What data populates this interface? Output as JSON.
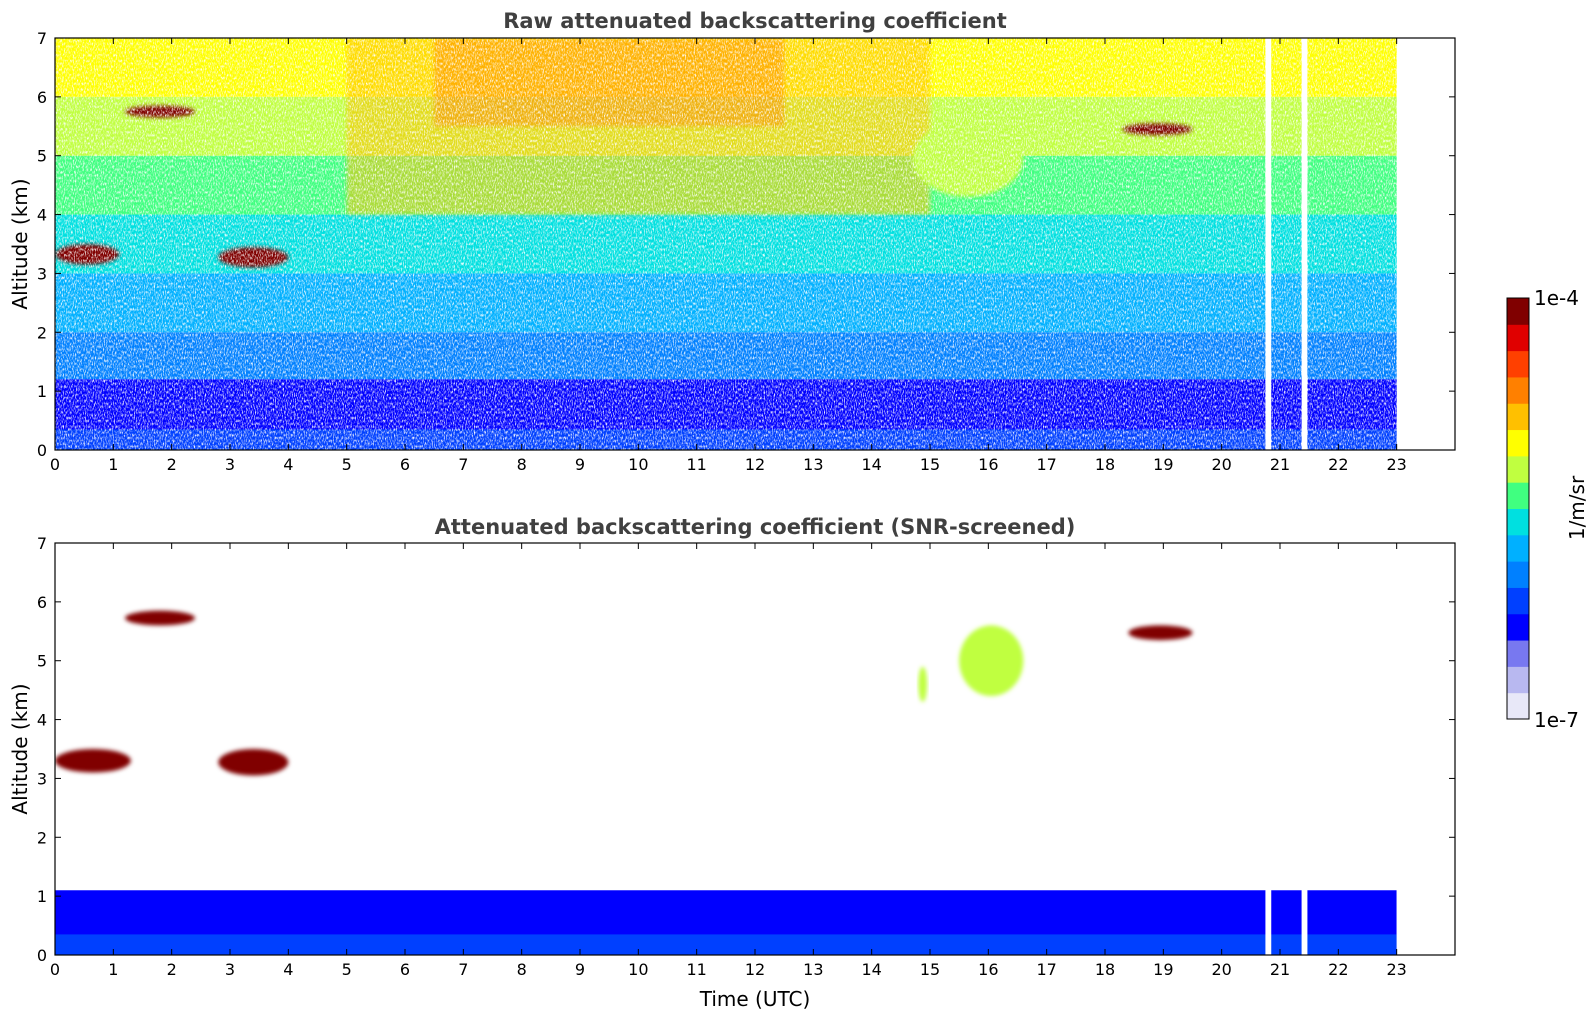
{
  "figure": {
    "colorbar": {
      "label": "1/m/sr",
      "min_label": "1e-7",
      "max_label": "1e-4",
      "colormap": [
        "#e8e8f8",
        "#b8b8f0",
        "#7878f0",
        "#0000ff",
        "#0040ff",
        "#0080ff",
        "#00b0ff",
        "#00e0e0",
        "#40ff80",
        "#c0ff40",
        "#ffff00",
        "#ffc000",
        "#ff8000",
        "#ff4000",
        "#e00000",
        "#800000"
      ]
    },
    "xlabel": "Time (UTC)"
  },
  "chart_data": [
    {
      "type": "heatmap",
      "title": "Raw attenuated backscattering coefficient",
      "xlabel": "",
      "ylabel": "Altitude (km)",
      "xlim": [
        0,
        24
      ],
      "ylim": [
        0,
        7
      ],
      "x_ticks": [
        0,
        1,
        2,
        3,
        4,
        5,
        6,
        7,
        8,
        9,
        10,
        11,
        12,
        13,
        14,
        15,
        16,
        17,
        18,
        19,
        20,
        21,
        22,
        23
      ],
      "y_ticks": [
        0,
        1,
        2,
        3,
        4,
        5,
        6,
        7
      ],
      "data_extent_hours": [
        0,
        23
      ],
      "data_gaps_hours": [
        [
          20.75,
          20.85
        ],
        [
          21.37,
          21.47
        ]
      ],
      "features": [
        {
          "name": "boundary layer",
          "t": [
            0,
            23
          ],
          "z": [
            0,
            1.2
          ],
          "level": "low-mid"
        },
        {
          "name": "cloud",
          "t": [
            1.2,
            2.4
          ],
          "z": [
            5.65,
            5.85
          ],
          "level": "max"
        },
        {
          "name": "cloud",
          "t": [
            0,
            1.1
          ],
          "z": [
            3.15,
            3.5
          ],
          "level": "max"
        },
        {
          "name": "cloud",
          "t": [
            2.8,
            4.0
          ],
          "z": [
            3.1,
            3.45
          ],
          "level": "max"
        },
        {
          "name": "cloud",
          "t": [
            18.3,
            19.5
          ],
          "z": [
            5.35,
            5.55
          ],
          "level": "max"
        },
        {
          "name": "thin cloud",
          "t": [
            14.7,
            16.6
          ],
          "z": [
            4.3,
            5.6
          ],
          "level": "high"
        }
      ]
    },
    {
      "type": "heatmap",
      "title": "Attenuated backscattering coefficient (SNR-screened)",
      "xlabel": "Time (UTC)",
      "ylabel": "Altitude (km)",
      "xlim": [
        0,
        24
      ],
      "ylim": [
        0,
        7
      ],
      "x_ticks": [
        0,
        1,
        2,
        3,
        4,
        5,
        6,
        7,
        8,
        9,
        10,
        11,
        12,
        13,
        14,
        15,
        16,
        17,
        18,
        19,
        20,
        21,
        22,
        23
      ],
      "y_ticks": [
        0,
        1,
        2,
        3,
        4,
        5,
        6,
        7
      ],
      "data_extent_hours": [
        0,
        23
      ],
      "data_gaps_hours": [
        [
          20.75,
          20.85
        ],
        [
          21.37,
          21.47
        ]
      ],
      "features": [
        {
          "name": "boundary layer",
          "t": [
            0,
            23
          ],
          "z": [
            0,
            1.1
          ],
          "level": "low-mid"
        },
        {
          "name": "cloud",
          "t": [
            1.2,
            2.4
          ],
          "z": [
            5.6,
            5.85
          ],
          "level": "max"
        },
        {
          "name": "cloud",
          "t": [
            0,
            1.3
          ],
          "z": [
            3.1,
            3.5
          ],
          "level": "max"
        },
        {
          "name": "cloud",
          "t": [
            2.8,
            4.0
          ],
          "z": [
            3.05,
            3.5
          ],
          "level": "max"
        },
        {
          "name": "cloud",
          "t": [
            18.4,
            19.5
          ],
          "z": [
            5.35,
            5.6
          ],
          "level": "max"
        },
        {
          "name": "thin cloud",
          "t": [
            15.5,
            16.6
          ],
          "z": [
            4.4,
            5.6
          ],
          "level": "high"
        },
        {
          "name": "thin cloud",
          "t": [
            14.8,
            14.95
          ],
          "z": [
            4.3,
            4.9
          ],
          "level": "high"
        }
      ]
    }
  ]
}
